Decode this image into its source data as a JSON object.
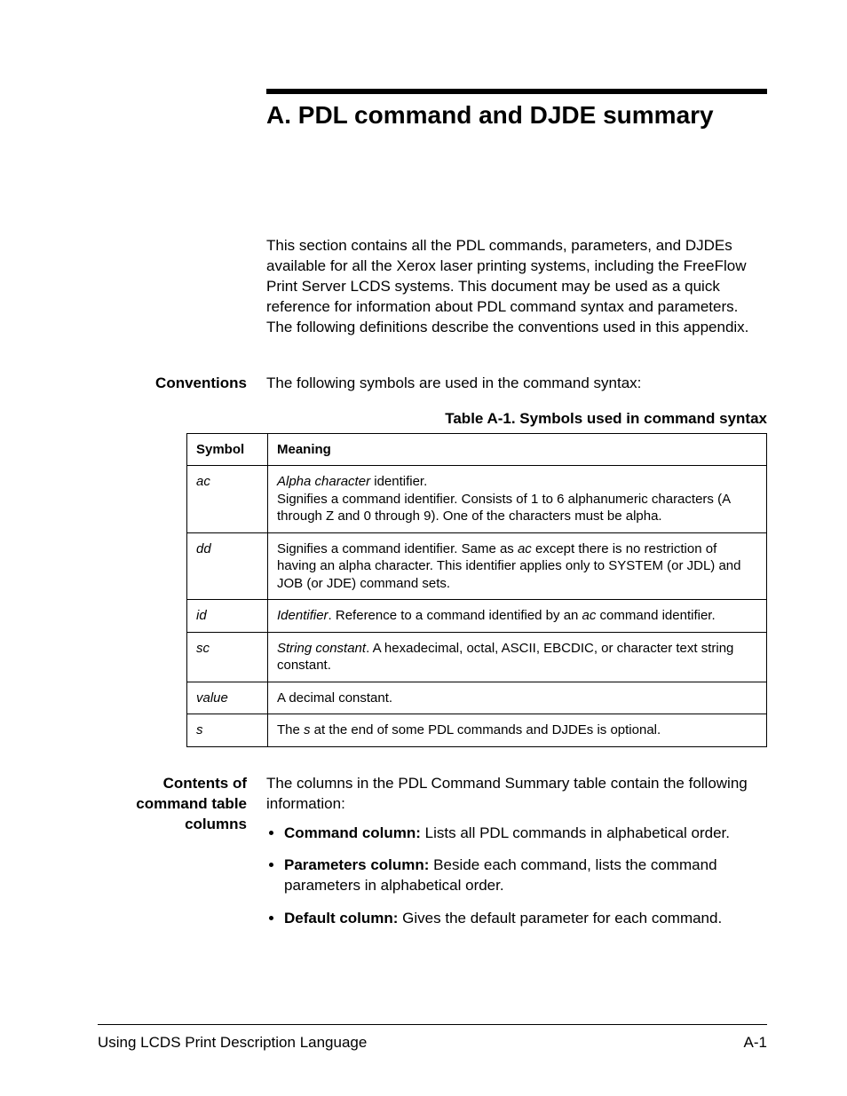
{
  "title": "A.    PDL command and DJDE summary",
  "intro": "This section contains all the PDL commands, parameters, and DJDEs available for all the Xerox laser printing systems, including the FreeFlow Print Server LCDS systems. This document may be used as a quick reference for information about PDL command syntax and parameters. The following definitions describe the conventions used in this appendix.",
  "conventions": {
    "label": "Conventions",
    "text": "The following symbols are used in the command syntax:",
    "caption": "Table A-1. Symbols used in command syntax",
    "headers": {
      "symbol": "Symbol",
      "meaning": "Meaning"
    },
    "rows": [
      {
        "symbol": "ac",
        "lead_italic": "Alpha character",
        "lead_plain": " identifier.",
        "rest": "Signifies a command identifier. Consists of 1 to 6 alphanumeric characters (A through Z and 0 through 9). One of the characters must be alpha."
      },
      {
        "symbol": "dd",
        "pre": "Signifies a command identifier. Same as ",
        "mid_italic": "ac",
        "post": " except there is no restriction of having an alpha character. This identifier applies only to SYSTEM (or JDL) and JOB (or JDE) command sets."
      },
      {
        "symbol": "id",
        "lead_italic": "Identifier",
        "lead_plain": ". Reference to a command identified by an ",
        "mid_italic": "ac",
        "post": " command identifier."
      },
      {
        "symbol": "sc",
        "lead_italic": "String constant",
        "lead_plain": ". A hexadecimal, octal, ASCII, EBCDIC, or character text string constant."
      },
      {
        "symbol": "value",
        "plain": "A decimal constant."
      },
      {
        "symbol": "s",
        "pre": "The ",
        "mid_italic": "s",
        "post": " at the end of some PDL commands and DJDEs is optional."
      }
    ]
  },
  "contents": {
    "label_line1": "Contents of",
    "label_line2": "command table",
    "label_line3": "columns",
    "intro": "The columns in the PDL Command Summary table contain the following information:",
    "bullets": [
      {
        "bold": "Command column:",
        "text": " Lists all PDL commands in alphabetical order."
      },
      {
        "bold": "Parameters column:",
        "text": " Beside each command, lists the command parameters in alphabetical order."
      },
      {
        "bold": "Default column:",
        "text": " Gives the default parameter for each command."
      }
    ]
  },
  "footer": {
    "left": "Using LCDS Print Description Language",
    "right": "A-1"
  }
}
